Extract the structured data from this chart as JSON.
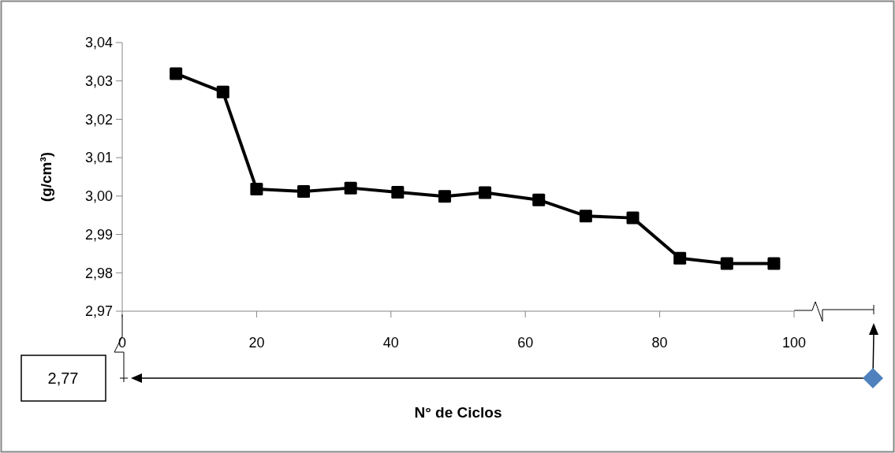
{
  "chart_data": {
    "type": "line",
    "ylabel": "(g/cm³)",
    "xlabel": "N° de Ciclos",
    "x": [
      8,
      15,
      20,
      27,
      34,
      41,
      48,
      54,
      62,
      69,
      76,
      83,
      90,
      97
    ],
    "series": [
      {
        "color": "#000000",
        "values": [
          3.0319,
          3.0271,
          3.0018,
          3.0012,
          3.0021,
          3.001,
          2.9999,
          3.0009,
          2.999,
          2.9948,
          2.9943,
          2.9838,
          2.9824,
          2.9824
        ]
      }
    ],
    "xlim": [
      0,
      100
    ],
    "xticks": [
      0,
      20,
      40,
      60,
      80,
      100
    ],
    "ylim": [
      2.97,
      3.04
    ],
    "yticks": [
      {
        "value": 2.97,
        "label": "2,97"
      },
      {
        "value": 2.98,
        "label": "2,98"
      },
      {
        "value": 2.99,
        "label": "2,99"
      },
      {
        "value": 3.0,
        "label": "3,00"
      },
      {
        "value": 3.01,
        "label": "3,01"
      },
      {
        "value": 3.02,
        "label": "3,02"
      },
      {
        "value": 3.03,
        "label": "3,03"
      },
      {
        "value": 3.04,
        "label": "3,04"
      }
    ],
    "marker": "square",
    "line_style": "solid",
    "grid": false,
    "annotations": [
      "2,77"
    ]
  }
}
